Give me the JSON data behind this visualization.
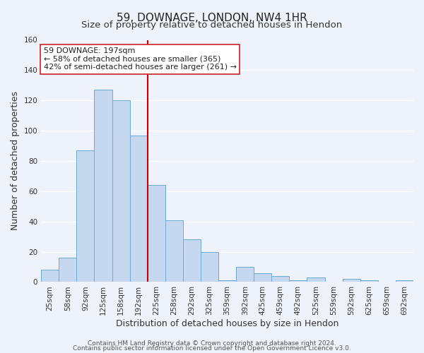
{
  "title": "59, DOWNAGE, LONDON, NW4 1HR",
  "subtitle": "Size of property relative to detached houses in Hendon",
  "xlabel": "Distribution of detached houses by size in Hendon",
  "ylabel": "Number of detached properties",
  "bar_labels": [
    "25sqm",
    "58sqm",
    "92sqm",
    "125sqm",
    "158sqm",
    "192sqm",
    "225sqm",
    "258sqm",
    "292sqm",
    "325sqm",
    "359sqm",
    "392sqm",
    "425sqm",
    "459sqm",
    "492sqm",
    "525sqm",
    "559sqm",
    "592sqm",
    "625sqm",
    "659sqm",
    "692sqm"
  ],
  "bar_values": [
    8,
    16,
    87,
    127,
    120,
    97,
    64,
    41,
    28,
    20,
    1,
    10,
    6,
    4,
    1,
    3,
    0,
    2,
    1,
    0,
    1
  ],
  "bar_color": "#c5d8f0",
  "bar_edge_color": "#6aaad4",
  "vline_x": 5.5,
  "vline_color": "#cc0000",
  "ylim": [
    0,
    160
  ],
  "yticks": [
    0,
    20,
    40,
    60,
    80,
    100,
    120,
    140,
    160
  ],
  "annotation_lines": [
    "59 DOWNAGE: 197sqm",
    "← 58% of detached houses are smaller (365)",
    "42% of semi-detached houses are larger (261) →"
  ],
  "footer1": "Contains HM Land Registry data © Crown copyright and database right 2024.",
  "footer2": "Contains public sector information licensed under the Open Government Licence v3.0.",
  "background_color": "#eef2fa",
  "grid_color": "#ffffff",
  "title_fontsize": 11,
  "subtitle_fontsize": 9.5,
  "axis_label_fontsize": 9,
  "tick_fontsize": 7.5,
  "annotation_fontsize": 8,
  "footer_fontsize": 6.5
}
